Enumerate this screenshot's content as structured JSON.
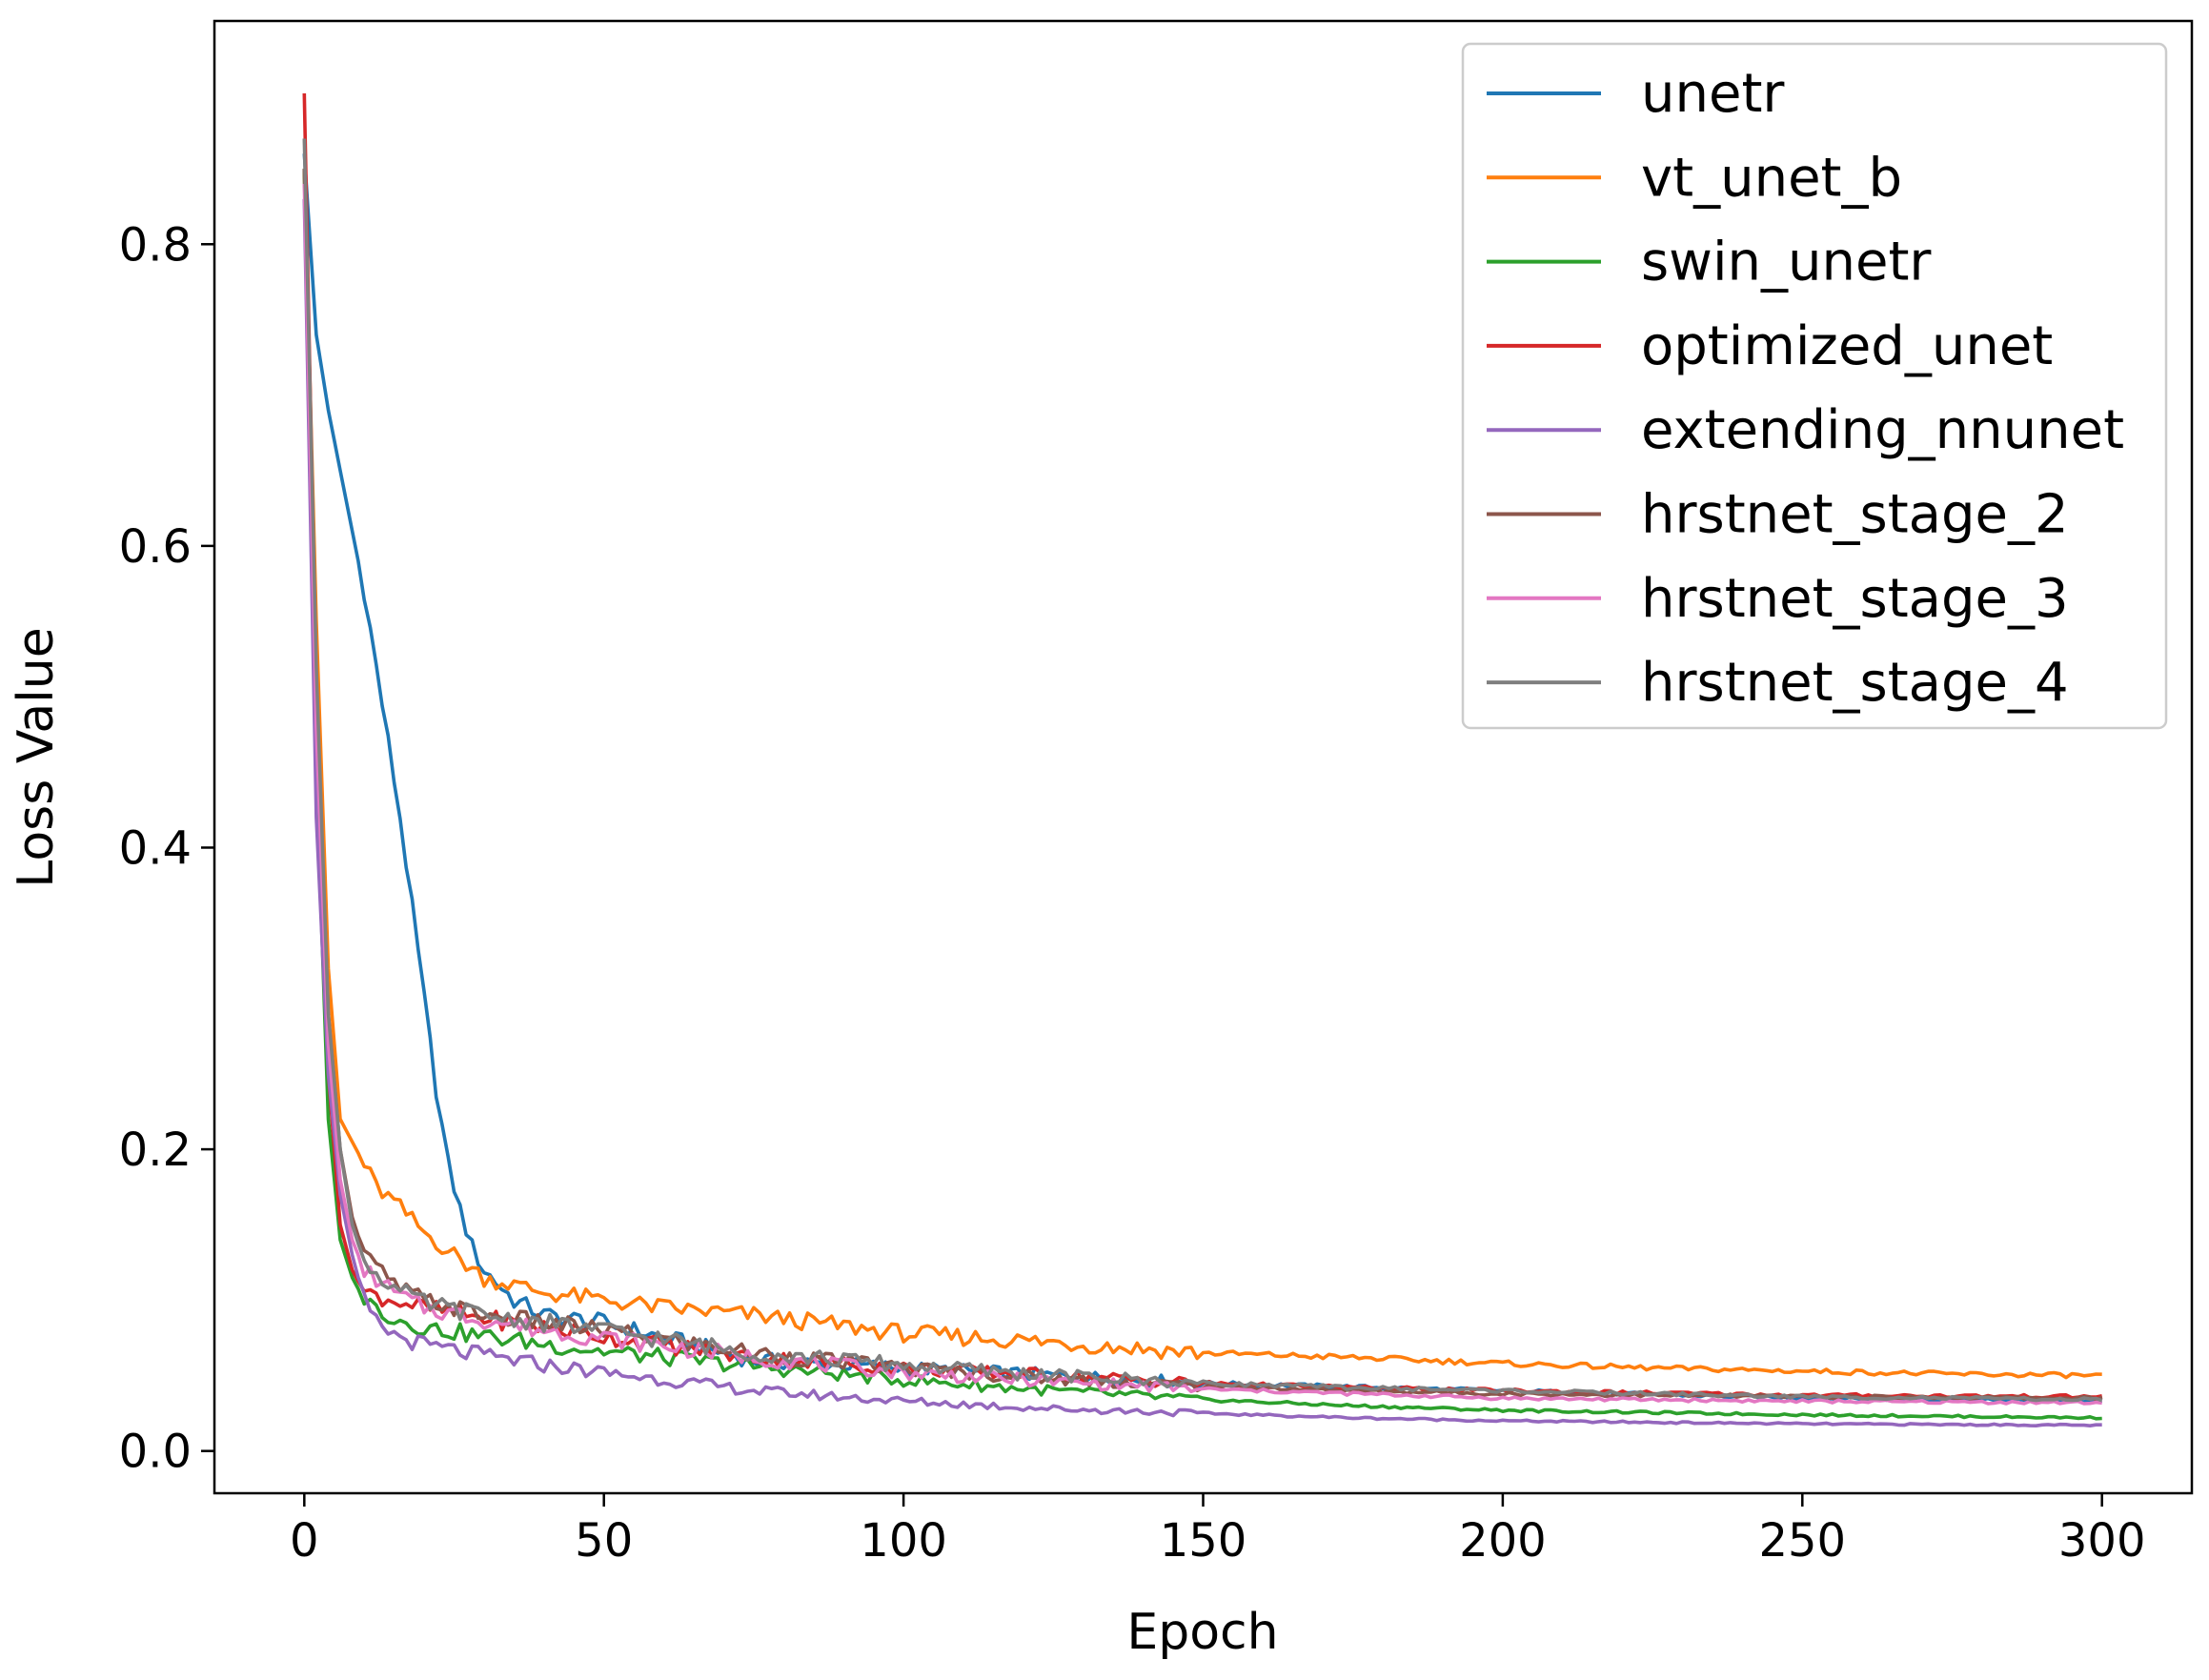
{
  "chart_data": {
    "type": "line",
    "title": "",
    "xlabel": "Epoch",
    "ylabel": "Loss Value",
    "xlim": [
      -15,
      315
    ],
    "ylim": [
      -0.028,
      0.948
    ],
    "xticks": [
      0,
      50,
      100,
      150,
      200,
      250,
      300
    ],
    "xtick_labels": [
      "0",
      "50",
      "100",
      "150",
      "200",
      "250",
      "300"
    ],
    "yticks": [
      0.0,
      0.2,
      0.4,
      0.6,
      0.8
    ],
    "ytick_labels": [
      "0.0",
      "0.2",
      "0.4",
      "0.6",
      "0.8"
    ],
    "grid": false,
    "legend_position": "top-right",
    "series": [
      {
        "name": "unetr",
        "color": "#1f77b4",
        "points": [
          [
            0,
            0.86
          ],
          [
            2,
            0.74
          ],
          [
            4,
            0.69
          ],
          [
            6,
            0.65
          ],
          [
            8,
            0.61
          ],
          [
            10,
            0.57
          ],
          [
            12,
            0.52
          ],
          [
            14,
            0.47
          ],
          [
            16,
            0.42
          ],
          [
            18,
            0.36
          ],
          [
            20,
            0.3
          ],
          [
            22,
            0.24
          ],
          [
            24,
            0.19
          ],
          [
            26,
            0.16
          ],
          [
            28,
            0.135
          ],
          [
            30,
            0.12
          ],
          [
            35,
            0.1
          ],
          [
            40,
            0.09
          ],
          [
            50,
            0.085
          ],
          [
            75,
            0.06
          ],
          [
            100,
            0.055
          ],
          [
            125,
            0.05
          ],
          [
            150,
            0.045
          ],
          [
            200,
            0.04
          ],
          [
            250,
            0.035
          ],
          [
            300,
            0.033
          ]
        ]
      },
      {
        "name": "vt_unet_b",
        "color": "#ff7f0e",
        "points": [
          [
            0,
            0.85
          ],
          [
            2,
            0.55
          ],
          [
            4,
            0.32
          ],
          [
            6,
            0.22
          ],
          [
            8,
            0.205
          ],
          [
            10,
            0.19
          ],
          [
            12,
            0.175
          ],
          [
            15,
            0.165
          ],
          [
            20,
            0.145
          ],
          [
            25,
            0.13
          ],
          [
            30,
            0.115
          ],
          [
            40,
            0.105
          ],
          [
            50,
            0.1
          ],
          [
            60,
            0.095
          ],
          [
            75,
            0.09
          ],
          [
            100,
            0.078
          ],
          [
            125,
            0.072
          ],
          [
            150,
            0.065
          ],
          [
            175,
            0.062
          ],
          [
            200,
            0.058
          ],
          [
            225,
            0.055
          ],
          [
            250,
            0.053
          ],
          [
            275,
            0.051
          ],
          [
            300,
            0.05
          ]
        ]
      },
      {
        "name": "swin_unetr",
        "color": "#2ca02c",
        "points": [
          [
            0,
            0.85
          ],
          [
            2,
            0.45
          ],
          [
            4,
            0.22
          ],
          [
            6,
            0.14
          ],
          [
            8,
            0.115
          ],
          [
            10,
            0.1
          ],
          [
            15,
            0.088
          ],
          [
            20,
            0.082
          ],
          [
            30,
            0.076
          ],
          [
            40,
            0.071
          ],
          [
            50,
            0.066
          ],
          [
            75,
            0.056
          ],
          [
            100,
            0.047
          ],
          [
            125,
            0.04
          ],
          [
            150,
            0.034
          ],
          [
            175,
            0.03
          ],
          [
            200,
            0.027
          ],
          [
            250,
            0.024
          ],
          [
            300,
            0.022
          ]
        ]
      },
      {
        "name": "optimized_unet",
        "color": "#d62728",
        "points": [
          [
            0,
            0.9
          ],
          [
            2,
            0.5
          ],
          [
            4,
            0.25
          ],
          [
            6,
            0.15
          ],
          [
            8,
            0.12
          ],
          [
            10,
            0.105
          ],
          [
            15,
            0.1
          ],
          [
            20,
            0.095
          ],
          [
            30,
            0.088
          ],
          [
            40,
            0.082
          ],
          [
            50,
            0.076
          ],
          [
            75,
            0.062
          ],
          [
            100,
            0.055
          ],
          [
            125,
            0.05
          ],
          [
            150,
            0.045
          ],
          [
            175,
            0.042
          ],
          [
            200,
            0.04
          ],
          [
            250,
            0.037
          ],
          [
            300,
            0.036
          ]
        ]
      },
      {
        "name": "extending_nnunet",
        "color": "#9467bd",
        "points": [
          [
            0,
            0.83
          ],
          [
            2,
            0.42
          ],
          [
            4,
            0.25
          ],
          [
            6,
            0.17
          ],
          [
            8,
            0.13
          ],
          [
            10,
            0.1
          ],
          [
            12,
            0.085
          ],
          [
            15,
            0.077
          ],
          [
            20,
            0.07
          ],
          [
            30,
            0.063
          ],
          [
            40,
            0.057
          ],
          [
            50,
            0.052
          ],
          [
            75,
            0.04
          ],
          [
            100,
            0.033
          ],
          [
            125,
            0.028
          ],
          [
            150,
            0.025
          ],
          [
            175,
            0.022
          ],
          [
            200,
            0.02
          ],
          [
            250,
            0.018
          ],
          [
            300,
            0.017
          ]
        ]
      },
      {
        "name": "hrstnet_stage_2",
        "color": "#8c564b",
        "points": [
          [
            0,
            0.85
          ],
          [
            2,
            0.5
          ],
          [
            4,
            0.29
          ],
          [
            6,
            0.2
          ],
          [
            8,
            0.155
          ],
          [
            10,
            0.13
          ],
          [
            15,
            0.11
          ],
          [
            20,
            0.1
          ],
          [
            30,
            0.09
          ],
          [
            40,
            0.085
          ],
          [
            50,
            0.08
          ],
          [
            75,
            0.065
          ],
          [
            100,
            0.055
          ],
          [
            125,
            0.048
          ],
          [
            150,
            0.043
          ],
          [
            175,
            0.04
          ],
          [
            200,
            0.038
          ],
          [
            250,
            0.036
          ],
          [
            300,
            0.035
          ]
        ]
      },
      {
        "name": "hrstnet_stage_3",
        "color": "#e377c2",
        "points": [
          [
            0,
            0.84
          ],
          [
            2,
            0.48
          ],
          [
            4,
            0.27
          ],
          [
            6,
            0.18
          ],
          [
            8,
            0.14
          ],
          [
            10,
            0.12
          ],
          [
            15,
            0.105
          ],
          [
            20,
            0.095
          ],
          [
            30,
            0.087
          ],
          [
            40,
            0.08
          ],
          [
            50,
            0.075
          ],
          [
            75,
            0.062
          ],
          [
            100,
            0.052
          ],
          [
            125,
            0.046
          ],
          [
            150,
            0.041
          ],
          [
            175,
            0.038
          ],
          [
            200,
            0.035
          ],
          [
            250,
            0.033
          ],
          [
            300,
            0.032
          ]
        ]
      },
      {
        "name": "hrstnet_stage_4",
        "color": "#7f7f7f",
        "points": [
          [
            0,
            0.87
          ],
          [
            2,
            0.52
          ],
          [
            4,
            0.29
          ],
          [
            6,
            0.2
          ],
          [
            8,
            0.15
          ],
          [
            10,
            0.125
          ],
          [
            15,
            0.108
          ],
          [
            20,
            0.098
          ],
          [
            30,
            0.09
          ],
          [
            40,
            0.085
          ],
          [
            50,
            0.08
          ],
          [
            75,
            0.065
          ],
          [
            100,
            0.057
          ],
          [
            125,
            0.05
          ],
          [
            150,
            0.045
          ],
          [
            175,
            0.042
          ],
          [
            200,
            0.04
          ],
          [
            250,
            0.036
          ],
          [
            300,
            0.034
          ]
        ]
      }
    ]
  }
}
